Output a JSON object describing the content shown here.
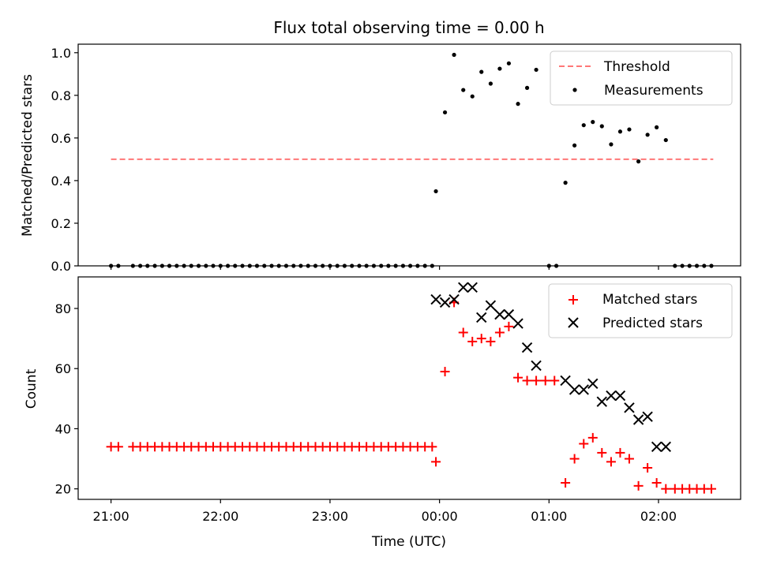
{
  "figure": {
    "title": "Flux total observing time = 0.00 h"
  },
  "chart_data": [
    {
      "type": "scatter",
      "ylabel": "Matched/Predicted stars",
      "xlabel": "",
      "xlim": [
        -0.3,
        5.75
      ],
      "ylim": [
        0.0,
        1.04
      ],
      "yticks": [
        0.0,
        0.2,
        0.4,
        0.6,
        0.8,
        1.0
      ],
      "ytick_labels": [
        "0.0",
        "0.2",
        "0.4",
        "0.6",
        "0.8",
        "1.0"
      ],
      "legend": {
        "position": "top-right",
        "entries": [
          "Threshold",
          "Measurements"
        ]
      },
      "threshold": {
        "name": "Threshold",
        "value": 0.5,
        "x": [
          0.0,
          5.5
        ],
        "color": "#ff7777"
      },
      "series": [
        {
          "name": "Measurements",
          "marker": "dot",
          "color": "#000000",
          "points": [
            [
              0.0,
              0
            ],
            [
              0.067,
              0
            ],
            [
              0.2,
              0
            ],
            [
              0.267,
              0
            ],
            [
              0.333,
              0
            ],
            [
              0.4,
              0
            ],
            [
              0.467,
              0
            ],
            [
              0.533,
              0
            ],
            [
              0.6,
              0
            ],
            [
              0.667,
              0
            ],
            [
              0.733,
              0
            ],
            [
              0.8,
              0
            ],
            [
              0.867,
              0
            ],
            [
              0.933,
              0
            ],
            [
              1.0,
              0
            ],
            [
              1.067,
              0
            ],
            [
              1.133,
              0
            ],
            [
              1.2,
              0
            ],
            [
              1.267,
              0
            ],
            [
              1.333,
              0
            ],
            [
              1.4,
              0
            ],
            [
              1.467,
              0
            ],
            [
              1.533,
              0
            ],
            [
              1.6,
              0
            ],
            [
              1.667,
              0
            ],
            [
              1.733,
              0
            ],
            [
              1.8,
              0
            ],
            [
              1.867,
              0
            ],
            [
              1.933,
              0
            ],
            [
              2.0,
              0
            ],
            [
              2.067,
              0
            ],
            [
              2.133,
              0
            ],
            [
              2.2,
              0
            ],
            [
              2.267,
              0
            ],
            [
              2.333,
              0
            ],
            [
              2.4,
              0
            ],
            [
              2.467,
              0
            ],
            [
              2.533,
              0
            ],
            [
              2.6,
              0
            ],
            [
              2.667,
              0
            ],
            [
              2.733,
              0
            ],
            [
              2.8,
              0
            ],
            [
              2.867,
              0
            ],
            [
              2.933,
              0
            ],
            [
              2.967,
              0.35
            ],
            [
              3.05,
              0.72
            ],
            [
              3.133,
              0.99
            ],
            [
              3.217,
              0.825
            ],
            [
              3.3,
              0.795
            ],
            [
              3.383,
              0.91
            ],
            [
              3.467,
              0.855
            ],
            [
              3.55,
              0.925
            ],
            [
              3.633,
              0.95
            ],
            [
              3.717,
              0.76
            ],
            [
              3.8,
              0.835
            ],
            [
              3.883,
              0.92
            ],
            [
              4.0,
              0
            ],
            [
              4.067,
              0
            ],
            [
              4.15,
              0.39
            ],
            [
              4.233,
              0.565
            ],
            [
              4.317,
              0.66
            ],
            [
              4.4,
              0.675
            ],
            [
              4.483,
              0.655
            ],
            [
              4.567,
              0.57
            ],
            [
              4.65,
              0.63
            ],
            [
              4.733,
              0.64
            ],
            [
              4.817,
              0.49
            ],
            [
              4.9,
              0.615
            ],
            [
              4.983,
              0.65
            ],
            [
              5.067,
              0.59
            ],
            [
              5.15,
              0
            ],
            [
              5.217,
              0
            ],
            [
              5.283,
              0
            ],
            [
              5.35,
              0
            ],
            [
              5.417,
              0
            ],
            [
              5.483,
              0
            ]
          ]
        }
      ]
    },
    {
      "type": "scatter",
      "ylabel": "Count",
      "xlabel": "Time (UTC)",
      "xlim": [
        -0.3,
        5.75
      ],
      "ylim": [
        16.5,
        90.5
      ],
      "xticks": [
        0,
        1,
        2,
        3,
        4,
        5
      ],
      "xtick_labels": [
        "21:00",
        "22:00",
        "23:00",
        "00:00",
        "01:00",
        "02:00"
      ],
      "yticks": [
        20,
        40,
        60,
        80
      ],
      "ytick_labels": [
        "20",
        "40",
        "60",
        "80"
      ],
      "legend": {
        "position": "top-right",
        "entries": [
          "Matched stars",
          "Predicted stars"
        ]
      },
      "series": [
        {
          "name": "Matched stars",
          "marker": "plus",
          "color": "#ff0000",
          "points": [
            [
              0.0,
              34
            ],
            [
              0.067,
              34
            ],
            [
              0.2,
              34
            ],
            [
              0.267,
              34
            ],
            [
              0.333,
              34
            ],
            [
              0.4,
              34
            ],
            [
              0.467,
              34
            ],
            [
              0.533,
              34
            ],
            [
              0.6,
              34
            ],
            [
              0.667,
              34
            ],
            [
              0.733,
              34
            ],
            [
              0.8,
              34
            ],
            [
              0.867,
              34
            ],
            [
              0.933,
              34
            ],
            [
              1.0,
              34
            ],
            [
              1.067,
              34
            ],
            [
              1.133,
              34
            ],
            [
              1.2,
              34
            ],
            [
              1.267,
              34
            ],
            [
              1.333,
              34
            ],
            [
              1.4,
              34
            ],
            [
              1.467,
              34
            ],
            [
              1.533,
              34
            ],
            [
              1.6,
              34
            ],
            [
              1.667,
              34
            ],
            [
              1.733,
              34
            ],
            [
              1.8,
              34
            ],
            [
              1.867,
              34
            ],
            [
              1.933,
              34
            ],
            [
              2.0,
              34
            ],
            [
              2.067,
              34
            ],
            [
              2.133,
              34
            ],
            [
              2.2,
              34
            ],
            [
              2.267,
              34
            ],
            [
              2.333,
              34
            ],
            [
              2.4,
              34
            ],
            [
              2.467,
              34
            ],
            [
              2.533,
              34
            ],
            [
              2.6,
              34
            ],
            [
              2.667,
              34
            ],
            [
              2.733,
              34
            ],
            [
              2.8,
              34
            ],
            [
              2.867,
              34
            ],
            [
              2.933,
              34
            ],
            [
              2.967,
              29
            ],
            [
              3.05,
              59
            ],
            [
              3.133,
              82
            ],
            [
              3.217,
              72
            ],
            [
              3.3,
              69
            ],
            [
              3.383,
              70
            ],
            [
              3.467,
              69
            ],
            [
              3.55,
              72
            ],
            [
              3.633,
              74
            ],
            [
              3.717,
              57
            ],
            [
              3.8,
              56
            ],
            [
              3.883,
              56
            ],
            [
              3.967,
              56
            ],
            [
              4.05,
              56
            ],
            [
              4.15,
              22
            ],
            [
              4.233,
              30
            ],
            [
              4.317,
              35
            ],
            [
              4.4,
              37
            ],
            [
              4.483,
              32
            ],
            [
              4.567,
              29
            ],
            [
              4.65,
              32
            ],
            [
              4.733,
              30
            ],
            [
              4.817,
              21
            ],
            [
              4.9,
              27
            ],
            [
              4.983,
              22
            ],
            [
              5.067,
              20
            ],
            [
              5.15,
              20
            ],
            [
              5.217,
              20
            ],
            [
              5.283,
              20
            ],
            [
              5.35,
              20
            ],
            [
              5.417,
              20
            ],
            [
              5.483,
              20
            ]
          ]
        },
        {
          "name": "Predicted stars",
          "marker": "x",
          "color": "#000000",
          "points": [
            [
              2.967,
              83
            ],
            [
              3.05,
              82
            ],
            [
              3.133,
              83
            ],
            [
              3.217,
              87
            ],
            [
              3.3,
              87
            ],
            [
              3.383,
              77
            ],
            [
              3.467,
              81
            ],
            [
              3.55,
              78
            ],
            [
              3.633,
              78
            ],
            [
              3.717,
              75
            ],
            [
              3.8,
              67
            ],
            [
              3.883,
              61
            ],
            [
              4.15,
              56
            ],
            [
              4.233,
              53
            ],
            [
              4.317,
              53
            ],
            [
              4.4,
              55
            ],
            [
              4.483,
              49
            ],
            [
              4.567,
              51
            ],
            [
              4.65,
              51
            ],
            [
              4.733,
              47
            ],
            [
              4.817,
              43
            ],
            [
              4.9,
              44
            ],
            [
              4.983,
              34
            ],
            [
              5.067,
              34
            ]
          ]
        }
      ]
    }
  ]
}
